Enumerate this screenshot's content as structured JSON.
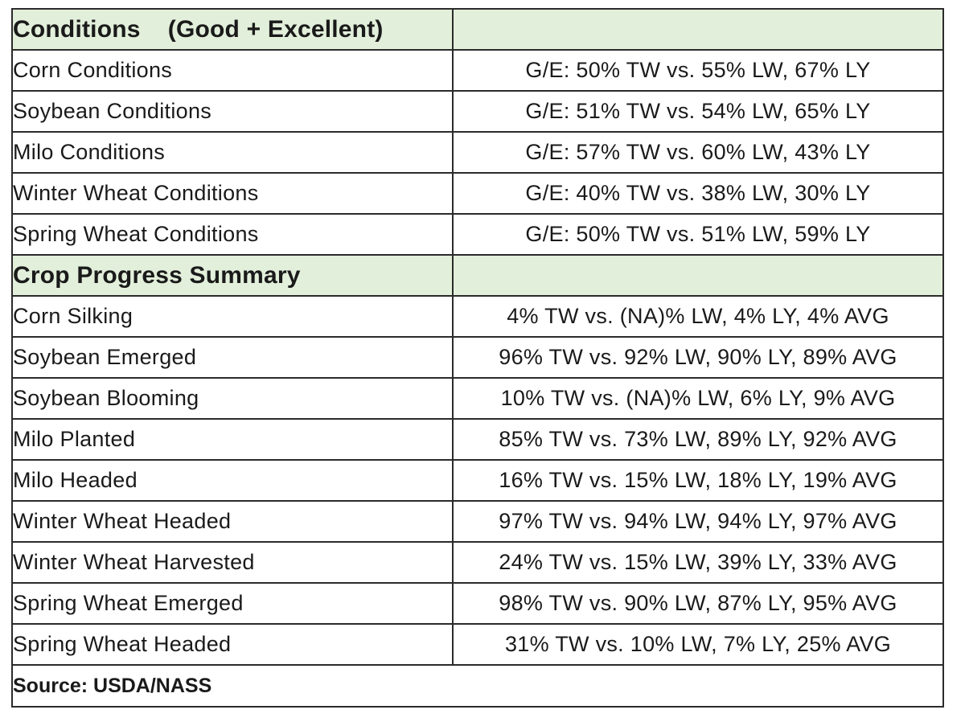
{
  "conditions": {
    "title": "Conditions    (Good + Excellent)",
    "rows": [
      {
        "label": "Corn Conditions",
        "value": "G/E: 50% TW vs. 55% LW, 67% LY"
      },
      {
        "label": "Soybean Conditions",
        "value": "G/E: 51% TW vs. 54% LW, 65% LY"
      },
      {
        "label": "Milo Conditions",
        "value": "G/E: 57% TW vs. 60% LW, 43% LY"
      },
      {
        "label": "Winter Wheat Conditions",
        "value": "G/E: 40% TW vs. 38% LW, 30% LY"
      },
      {
        "label": "Spring Wheat Conditions",
        "value": "G/E: 50% TW vs. 51% LW, 59% LY"
      }
    ]
  },
  "progress": {
    "title": "Crop Progress Summary",
    "rows": [
      {
        "label": "Corn Silking",
        "value": "4% TW vs. (NA)% LW, 4% LY, 4% AVG"
      },
      {
        "label": "Soybean Emerged",
        "value": "96% TW vs. 92% LW, 90% LY, 89% AVG"
      },
      {
        "label": "Soybean Blooming",
        "value": "10% TW vs. (NA)% LW, 6% LY, 9% AVG"
      },
      {
        "label": "Milo Planted",
        "value": "85% TW vs. 73% LW, 89% LY, 92% AVG"
      },
      {
        "label": "Milo Headed",
        "value": "16% TW vs. 15% LW, 18% LY, 19% AVG"
      },
      {
        "label": "Winter Wheat Headed",
        "value": "97% TW vs. 94% LW, 94% LY, 97% AVG"
      },
      {
        "label": "Winter Wheat Harvested",
        "value": "24% TW vs. 15% LW, 39% LY, 33% AVG"
      },
      {
        "label": "Spring Wheat Emerged",
        "value": "98% TW vs. 90% LW, 87% LY, 95% AVG"
      },
      {
        "label": "Spring Wheat Headed",
        "value": "31% TW vs. 10% LW, 7% LY, 25% AVG"
      }
    ]
  },
  "source": "Source: USDA/NASS",
  "colors": {
    "section_header_bg": "#e2efda",
    "border": "#2b2b2b"
  }
}
